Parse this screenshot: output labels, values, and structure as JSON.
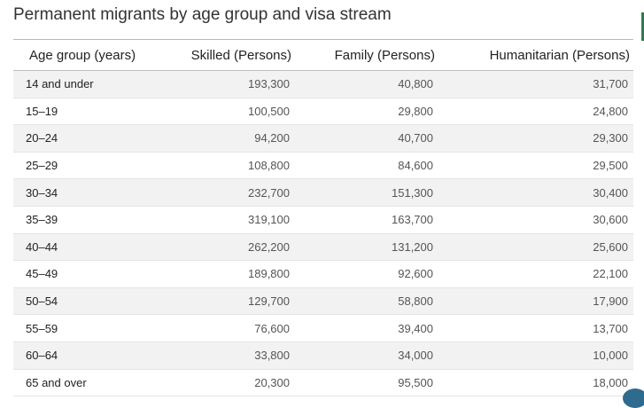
{
  "title": "Permanent migrants by age group and visa stream",
  "accent_color": "#2f7d4f",
  "columns": [
    "Age group (years)",
    "Skilled (Persons)",
    "Family (Persons)",
    "Humanitarian (Persons)"
  ],
  "rows": [
    [
      "14 and under",
      "193,300",
      "40,800",
      "31,700"
    ],
    [
      "15–19",
      "100,500",
      "29,800",
      "24,800"
    ],
    [
      "20–24",
      "94,200",
      "40,700",
      "29,300"
    ],
    [
      "25–29",
      "108,800",
      "84,600",
      "29,500"
    ],
    [
      "30–34",
      "232,700",
      "151,300",
      "30,400"
    ],
    [
      "35–39",
      "319,100",
      "163,700",
      "30,600"
    ],
    [
      "40–44",
      "262,200",
      "131,200",
      "25,600"
    ],
    [
      "45–49",
      "189,800",
      "92,600",
      "22,100"
    ],
    [
      "50–54",
      "129,700",
      "58,800",
      "17,900"
    ],
    [
      "55–59",
      "76,600",
      "39,400",
      "13,700"
    ],
    [
      "60–64",
      "33,800",
      "34,000",
      "10,000"
    ],
    [
      "65 and over",
      "20,300",
      "95,500",
      "18,000"
    ]
  ]
}
